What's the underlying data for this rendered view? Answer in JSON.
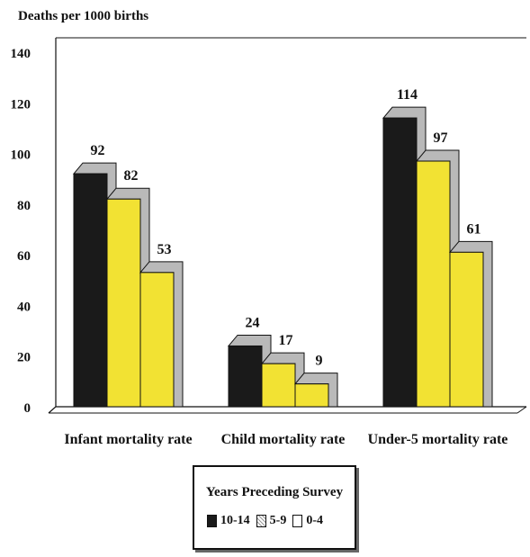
{
  "chart_data": {
    "type": "bar",
    "ylabel": "Deaths per 1000 births",
    "ylim": [
      0,
      140
    ],
    "yticks": [
      0,
      20,
      40,
      60,
      80,
      100,
      120,
      140
    ],
    "categories": [
      "Infant mortality rate",
      "Child mortality rate",
      "Under-5  mortality rate"
    ],
    "series": [
      {
        "name": "10-14",
        "values": [
          92,
          24,
          114
        ],
        "color": "#1a1a1a"
      },
      {
        "name": "5-9",
        "values": [
          82,
          17,
          97
        ],
        "color": "#f2e233"
      },
      {
        "name": "0-4",
        "values": [
          53,
          9,
          61
        ],
        "color": "#f2e233"
      }
    ],
    "legend": {
      "title": "Years Preceding Survey",
      "position": "bottom"
    },
    "grid": false
  }
}
